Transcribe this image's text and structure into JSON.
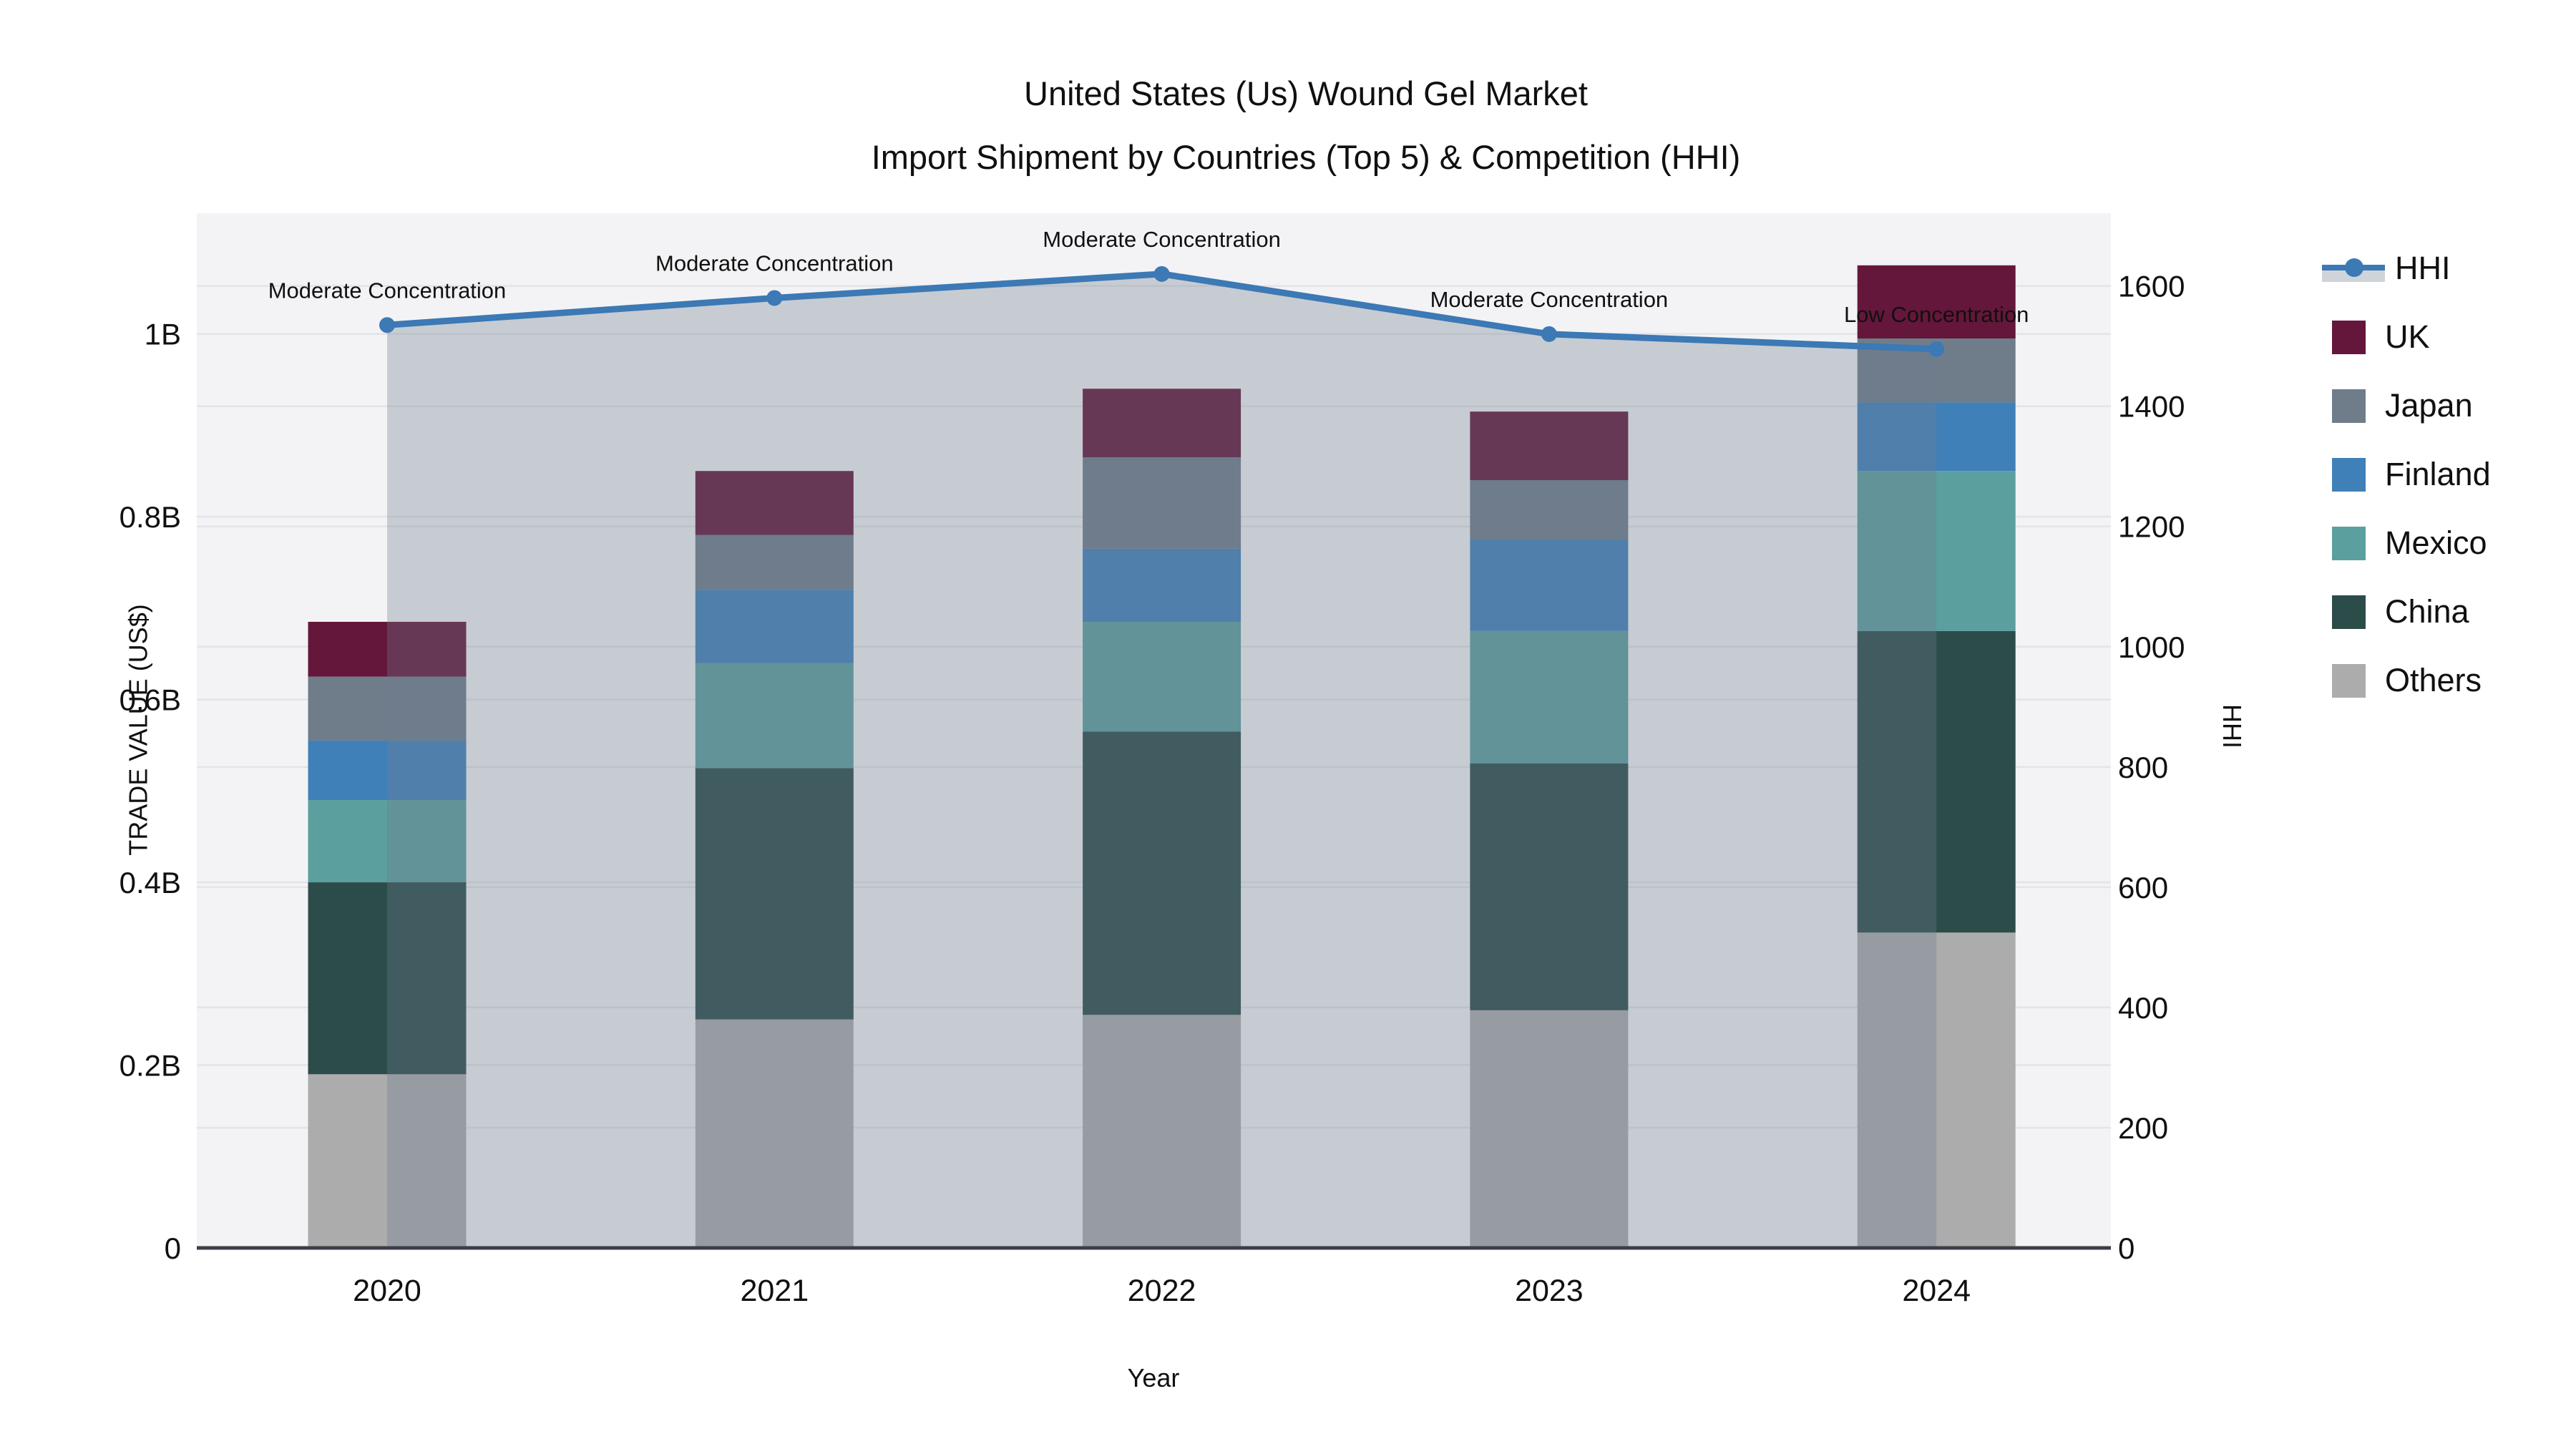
{
  "title": {
    "line1": "United States (Us) Wound Gel Market",
    "line2": "Import Shipment by Countries (Top 5) & Competition (HHI)"
  },
  "chart_data": {
    "type": "bar",
    "subtype": "stacked-bars-with-line-area-overlay",
    "title": "United States (Us) Wound Gel Market Import Shipment by Countries (Top 5) & Competition (HHI)",
    "xlabel": "Year",
    "ylabel_left": "TRADE VALUE (US$)",
    "ylabel_right": "HHI",
    "categories": [
      "2020",
      "2021",
      "2022",
      "2023",
      "2024"
    ],
    "bar_unit": "billion US$",
    "bar_series": [
      {
        "name": "Others",
        "color": "#acacac",
        "values": [
          0.19,
          0.25,
          0.255,
          0.26,
          0.345
        ]
      },
      {
        "name": "China",
        "color": "#2c4c4a",
        "values": [
          0.21,
          0.275,
          0.31,
          0.27,
          0.33
        ]
      },
      {
        "name": "Mexico",
        "color": "#5b9f9f",
        "values": [
          0.09,
          0.115,
          0.12,
          0.145,
          0.175
        ]
      },
      {
        "name": "Finland",
        "color": "#4080b8",
        "values": [
          0.065,
          0.08,
          0.08,
          0.1,
          0.075
        ]
      },
      {
        "name": "Japan",
        "color": "#6f7d8b",
        "values": [
          0.07,
          0.06,
          0.1,
          0.065,
          0.07
        ]
      },
      {
        "name": "UK",
        "color": "#64173a",
        "values": [
          0.06,
          0.07,
          0.075,
          0.075,
          0.08
        ]
      }
    ],
    "bar_totals": [
      0.685,
      0.85,
      0.94,
      0.915,
      1.075
    ],
    "line_series": {
      "name": "HHI",
      "color": "#3c79b5",
      "area_fill": "rgba(110,124,144,0.33)",
      "values": [
        1535,
        1580,
        1620,
        1520,
        1495
      ]
    },
    "annotations": [
      {
        "category": "2020",
        "text": "Moderate Concentration"
      },
      {
        "category": "2021",
        "text": "Moderate Concentration"
      },
      {
        "category": "2022",
        "text": "Moderate Concentration"
      },
      {
        "category": "2023",
        "text": "Moderate Concentration"
      },
      {
        "category": "2024",
        "text": "Low Concentration"
      }
    ],
    "yticks_left": [
      {
        "v": 0,
        "label": "0"
      },
      {
        "v": 0.2,
        "label": "0.2B"
      },
      {
        "v": 0.4,
        "label": "0.4B"
      },
      {
        "v": 0.6,
        "label": "0.6B"
      },
      {
        "v": 0.8,
        "label": "0.8B"
      },
      {
        "v": 1.0,
        "label": "1B"
      }
    ],
    "yticks_right": [
      {
        "v": 0,
        "label": "0"
      },
      {
        "v": 200,
        "label": "200"
      },
      {
        "v": 400,
        "label": "400"
      },
      {
        "v": 600,
        "label": "600"
      },
      {
        "v": 800,
        "label": "800"
      },
      {
        "v": 1000,
        "label": "1000"
      },
      {
        "v": 1200,
        "label": "1200"
      },
      {
        "v": 1400,
        "label": "1400"
      },
      {
        "v": 1600,
        "label": "1600"
      }
    ],
    "ylim_left": [
      0,
      1.132
    ],
    "ylim_right": [
      0,
      1721
    ],
    "grid": "both-axes-horizontal",
    "legend_position": "right"
  },
  "legend": {
    "entries": [
      {
        "label": "HHI",
        "type": "line",
        "color": "#3c79b5",
        "band": "rgba(110,124,144,0.33)"
      },
      {
        "label": "UK",
        "type": "swatch",
        "color": "#64173a"
      },
      {
        "label": "Japan",
        "type": "swatch",
        "color": "#6f7d8b"
      },
      {
        "label": "Finland",
        "type": "swatch",
        "color": "#4080b8"
      },
      {
        "label": "Mexico",
        "type": "swatch",
        "color": "#5b9f9f"
      },
      {
        "label": "China",
        "type": "swatch",
        "color": "#2c4c4a"
      },
      {
        "label": "Others",
        "type": "swatch",
        "color": "#acacac"
      }
    ]
  },
  "colors": {
    "plot_bg": "#f3f3f5",
    "gridline": "#e3e4e8",
    "axis_line": "#3a3f47",
    "text": "#101010"
  }
}
